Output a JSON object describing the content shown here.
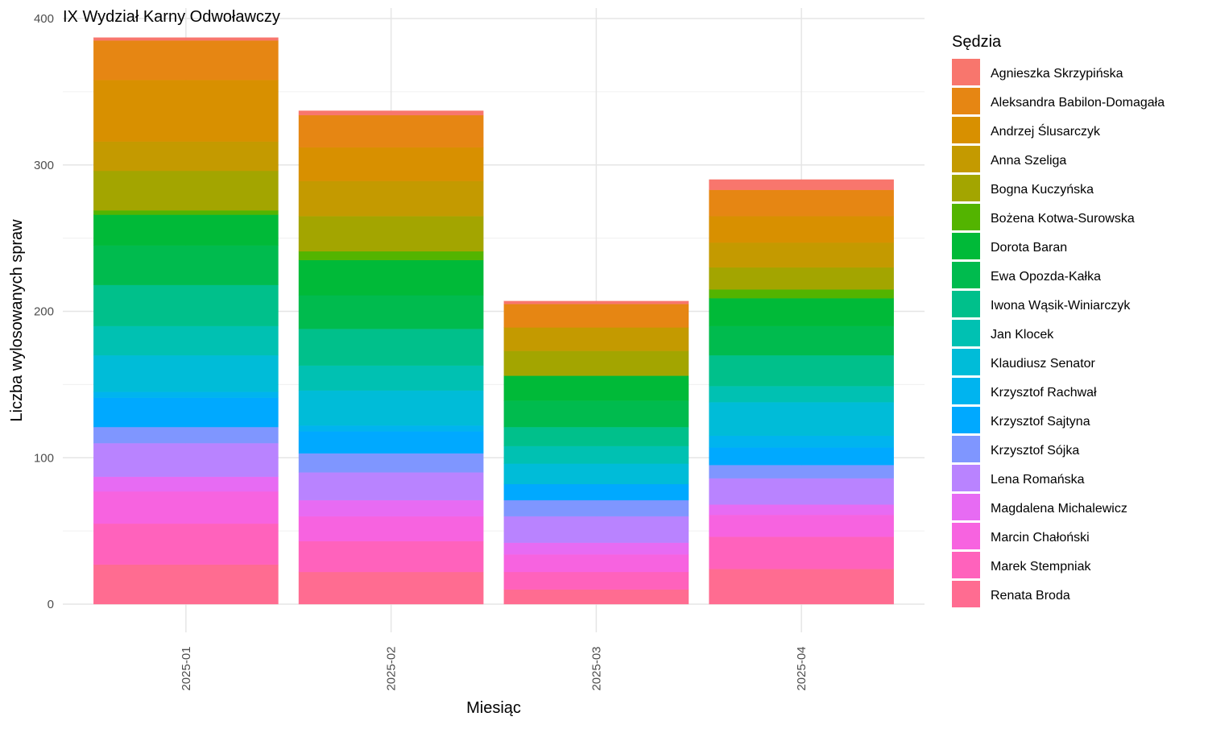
{
  "chart_data": {
    "type": "bar",
    "stacked": true,
    "title": "IX Wydział Karny Odwoławczy",
    "xlabel": "Miesiąc",
    "ylabel": "Liczba wylosowanych spraw",
    "ylim": [
      0,
      400
    ],
    "yticks": [
      0,
      100,
      200,
      300,
      400
    ],
    "grid": true,
    "legend_title": "Sędzia",
    "legend_position": "right",
    "categories": [
      "2025-01",
      "2025-02",
      "2025-03",
      "2025-04"
    ],
    "series": [
      {
        "name": "Renata Broda",
        "color": "#FF6C91",
        "values": [
          27,
          22,
          10,
          24
        ]
      },
      {
        "name": "Marek Stempniak",
        "color": "#FF62BC",
        "values": [
          28,
          21,
          12,
          22
        ]
      },
      {
        "name": "Marcin Chałoński",
        "color": "#F763E0",
        "values": [
          22,
          17,
          12,
          15
        ]
      },
      {
        "name": "Magdalena Michalewicz",
        "color": "#E76BF3",
        "values": [
          10,
          11,
          8,
          7
        ]
      },
      {
        "name": "Lena Romańska",
        "color": "#B983FF",
        "values": [
          23,
          19,
          18,
          18
        ]
      },
      {
        "name": "Krzysztof Sójka",
        "color": "#7F96FF",
        "values": [
          11,
          13,
          11,
          9
        ]
      },
      {
        "name": "Krzysztof Sajtyna",
        "color": "#00A9FF",
        "values": [
          20,
          15,
          11,
          12
        ]
      },
      {
        "name": "Krzysztof Rachwał",
        "color": "#00B4EF",
        "values": [
          4,
          4,
          0,
          8
        ]
      },
      {
        "name": "Klaudiusz Senator",
        "color": "#00BCD8",
        "values": [
          25,
          24,
          14,
          23
        ]
      },
      {
        "name": "Jan Klocek",
        "color": "#00C1B2",
        "values": [
          20,
          17,
          12,
          11
        ]
      },
      {
        "name": "Iwona Wąsik-Winiarczyk",
        "color": "#00C08B",
        "values": [
          28,
          25,
          13,
          21
        ]
      },
      {
        "name": "Ewa Opozda-Kałka",
        "color": "#00BB4E",
        "values": [
          27,
          23,
          18,
          20
        ]
      },
      {
        "name": "Dorota Baran",
        "color": "#00BA38",
        "values": [
          21,
          24,
          17,
          19
        ]
      },
      {
        "name": "Bożena Kotwa-Surowska",
        "color": "#53B400",
        "values": [
          3,
          6,
          0,
          6
        ]
      },
      {
        "name": "Bogna Kuczyńska",
        "color": "#A3A500",
        "values": [
          27,
          24,
          17,
          15
        ]
      },
      {
        "name": "Anna Szeliga",
        "color": "#C49A00",
        "values": [
          20,
          24,
          16,
          17
        ]
      },
      {
        "name": "Andrzej Ślusarczyk",
        "color": "#D89000",
        "values": [
          42,
          23,
          0,
          18
        ]
      },
      {
        "name": "Aleksandra Babilon-Domagała",
        "color": "#E68613",
        "values": [
          27,
          22,
          16,
          18
        ]
      },
      {
        "name": "Agnieszka Skrzypińska",
        "color": "#F8766D",
        "values": [
          2,
          3,
          2,
          7
        ]
      }
    ]
  }
}
